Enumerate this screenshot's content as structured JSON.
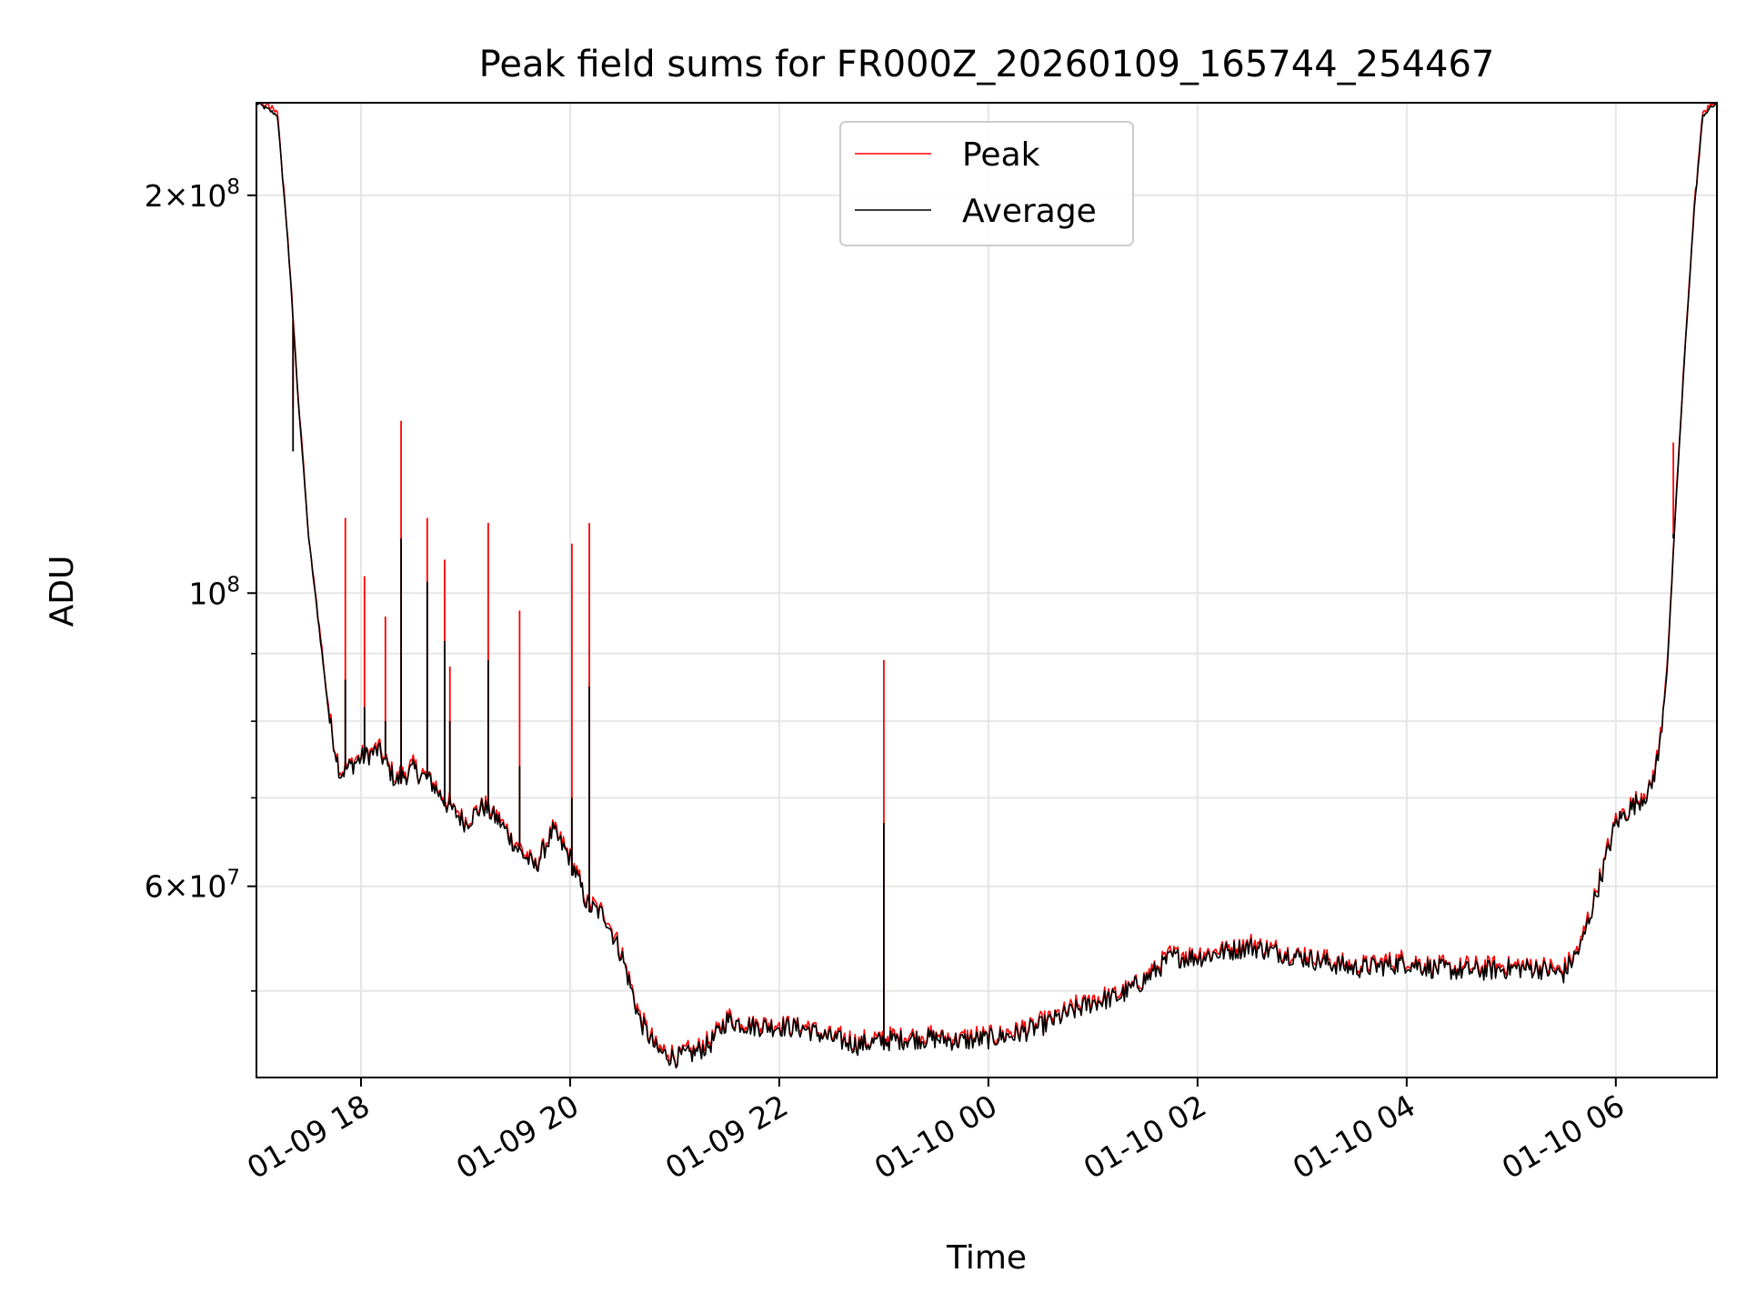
{
  "chart_data": {
    "type": "line",
    "title": "Peak field sums for FR000Z_20260109_165744_254467",
    "xlabel": "Time",
    "ylabel": "ADU",
    "yscale": "log",
    "xlim": [
      "2026-01-09 17:00",
      "2026-01-10 06:58"
    ],
    "ylim": [
      43000000,
      235000000
    ],
    "grid": true,
    "legend_position": "upper center",
    "x_tick_labels": [
      "01-09 18",
      "01-09 20",
      "01-09 22",
      "01-10 00",
      "01-10 02",
      "01-10 04",
      "01-10 06"
    ],
    "y_tick_labels": [
      {
        "value": 200000000,
        "mantissa": "2",
        "exponent": "8"
      },
      {
        "value": 100000000,
        "mantissa": "",
        "exponent": "8"
      },
      {
        "value": 60000000,
        "mantissa": "6",
        "exponent": "7"
      }
    ],
    "y_minor_ticks": [
      50000000,
      70000000,
      80000000,
      90000000
    ],
    "series": [
      {
        "name": "Peak",
        "color": "#ff0000"
      },
      {
        "name": "Average",
        "color": "#000000"
      }
    ],
    "average_points": [
      [
        "2026-01-09 17:00",
        235000000
      ],
      [
        "2026-01-09 17:12",
        230000000
      ],
      [
        "2026-01-09 17:18",
        185000000
      ],
      [
        "2026-01-09 17:24",
        140000000
      ],
      [
        "2026-01-09 17:30",
        110000000
      ],
      [
        "2026-01-09 17:36",
        94000000
      ],
      [
        "2026-01-09 17:42",
        80000000
      ],
      [
        "2026-01-09 17:48",
        73000000
      ],
      [
        "2026-01-09 18:00",
        75000000
      ],
      [
        "2026-01-09 18:10",
        76000000
      ],
      [
        "2026-01-09 18:20",
        72000000
      ],
      [
        "2026-01-09 18:30",
        73500000
      ],
      [
        "2026-01-09 18:40",
        72000000
      ],
      [
        "2026-01-09 18:50",
        69000000
      ],
      [
        "2026-01-09 19:00",
        67000000
      ],
      [
        "2026-01-09 19:10",
        69000000
      ],
      [
        "2026-01-09 19:20",
        67000000
      ],
      [
        "2026-01-09 19:30",
        64000000
      ],
      [
        "2026-01-09 19:40",
        62000000
      ],
      [
        "2026-01-09 19:50",
        66000000
      ],
      [
        "2026-01-09 20:00",
        63000000
      ],
      [
        "2026-01-09 20:10",
        58000000
      ],
      [
        "2026-01-09 20:20",
        57000000
      ],
      [
        "2026-01-09 20:30",
        53000000
      ],
      [
        "2026-01-09 20:40",
        47500000
      ],
      [
        "2026-01-09 20:50",
        45000000
      ],
      [
        "2026-01-09 21:00",
        44500000
      ],
      [
        "2026-01-09 21:10",
        44800000
      ],
      [
        "2026-01-09 21:20",
        45500000
      ],
      [
        "2026-01-09 21:30",
        47500000
      ],
      [
        "2026-01-09 21:45",
        47000000
      ],
      [
        "2026-01-09 22:00",
        47000000
      ],
      [
        "2026-01-09 22:15",
        46800000
      ],
      [
        "2026-01-09 22:30",
        46000000
      ],
      [
        "2026-01-09 22:45",
        45500000
      ],
      [
        "2026-01-09 23:00",
        45800000
      ],
      [
        "2026-01-09 23:15",
        46000000
      ],
      [
        "2026-01-09 23:30",
        46000000
      ],
      [
        "2026-01-09 23:45",
        45800000
      ],
      [
        "2026-01-10 00:00",
        46000000
      ],
      [
        "2026-01-10 00:15",
        46300000
      ],
      [
        "2026-01-10 00:30",
        47000000
      ],
      [
        "2026-01-10 00:45",
        48000000
      ],
      [
        "2026-01-10 01:00",
        49000000
      ],
      [
        "2026-01-10 01:15",
        49500000
      ],
      [
        "2026-01-10 01:30",
        51000000
      ],
      [
        "2026-01-10 01:45",
        53000000
      ],
      [
        "2026-01-10 02:00",
        53000000
      ],
      [
        "2026-01-10 02:15",
        53500000
      ],
      [
        "2026-01-10 02:30",
        54000000
      ],
      [
        "2026-01-10 02:45",
        53500000
      ],
      [
        "2026-01-10 03:00",
        53000000
      ],
      [
        "2026-01-10 03:15",
        52500000
      ],
      [
        "2026-01-10 03:30",
        52000000
      ],
      [
        "2026-01-10 03:45",
        52200000
      ],
      [
        "2026-01-10 04:00",
        52500000
      ],
      [
        "2026-01-10 04:15",
        52000000
      ],
      [
        "2026-01-10 04:30",
        51800000
      ],
      [
        "2026-01-10 04:45",
        51800000
      ],
      [
        "2026-01-10 05:00",
        52000000
      ],
      [
        "2026-01-10 05:15",
        52000000
      ],
      [
        "2026-01-10 05:30",
        51500000
      ],
      [
        "2026-01-10 05:40",
        54000000
      ],
      [
        "2026-01-10 05:50",
        60000000
      ],
      [
        "2026-01-10 06:00",
        67000000
      ],
      [
        "2026-01-10 06:10",
        69000000
      ],
      [
        "2026-01-10 06:20",
        71000000
      ],
      [
        "2026-01-10 06:25",
        76000000
      ],
      [
        "2026-01-10 06:30",
        90000000
      ],
      [
        "2026-01-10 06:35",
        120000000
      ],
      [
        "2026-01-10 06:40",
        155000000
      ],
      [
        "2026-01-10 06:45",
        195000000
      ],
      [
        "2026-01-10 06:50",
        230000000
      ],
      [
        "2026-01-10 06:58",
        235000000
      ]
    ],
    "peak_spikes": [
      {
        "t": "2026-01-09 17:21",
        "peak": 138000000,
        "average": 128000000
      },
      {
        "t": "2026-01-09 17:51",
        "peak": 114000000,
        "average": 86000000
      },
      {
        "t": "2026-01-09 18:02",
        "peak": 103000000,
        "average": 82000000
      },
      {
        "t": "2026-01-09 18:14",
        "peak": 96000000,
        "average": 80000000
      },
      {
        "t": "2026-01-09 18:23",
        "peak": 135000000,
        "average": 110000000
      },
      {
        "t": "2026-01-09 18:38",
        "peak": 114000000,
        "average": 102000000
      },
      {
        "t": "2026-01-09 18:48",
        "peak": 106000000,
        "average": 92000000
      },
      {
        "t": "2026-01-09 18:51",
        "peak": 88000000,
        "average": 80000000
      },
      {
        "t": "2026-01-09 19:13",
        "peak": 113000000,
        "average": 89000000
      },
      {
        "t": "2026-01-09 19:31",
        "peak": 97000000,
        "average": 74000000
      },
      {
        "t": "2026-01-09 20:01",
        "peak": 109000000,
        "average": 70000000
      },
      {
        "t": "2026-01-09 20:11",
        "peak": 113000000,
        "average": 85000000
      },
      {
        "t": "2026-01-09 23:00",
        "peak": 89000000,
        "average": 67000000
      },
      {
        "t": "2026-01-10 06:33",
        "peak": 130000000,
        "average": 110000000
      }
    ]
  }
}
